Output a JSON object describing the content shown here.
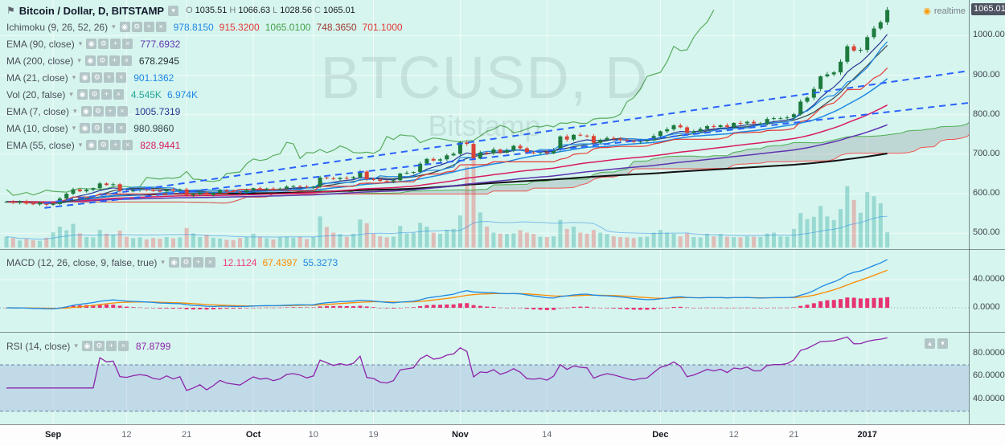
{
  "header": {
    "flag_icon_glyph": "⚑",
    "symbol_title": "Bitcoin / Dollar, D, BITSTAMP",
    "menu_button_glyph": "▾",
    "ohlc": {
      "o_label": "O",
      "o_value": "1035.51",
      "h_label": "H",
      "h_value": "1066.63",
      "l_label": "L",
      "l_value": "1028.56",
      "c_label": "C",
      "c_value": "1065.01"
    },
    "realtime": {
      "label": "realtime",
      "icon_glyph": "◉",
      "icon_color": "#ff9800"
    }
  },
  "icons": {
    "caret": "▾"
  },
  "pane_controls": {
    "up_glyph": "▴",
    "down_glyph": "▾"
  },
  "legend": {
    "buttons": [
      {
        "name": "toggle-visibility-icon",
        "glyph": "◉"
      },
      {
        "name": "settings-icon",
        "glyph": "⚙"
      },
      {
        "name": "more-icon",
        "glyph": "+"
      },
      {
        "name": "remove-icon",
        "glyph": "×"
      }
    ],
    "rows": [
      {
        "name": "Ichimoku (9, 26, 52, 26)",
        "values": [
          {
            "text": "978.8150",
            "color": "#1e88e5"
          },
          {
            "text": "915.3200",
            "color": "#e53935"
          },
          {
            "text": "1065.0100",
            "color": "#43a047"
          },
          {
            "text": "748.3650",
            "color": "#a0392f"
          },
          {
            "text": "701.1000",
            "color": "#e53935"
          }
        ]
      },
      {
        "name": "EMA (90, close)",
        "values": [
          {
            "text": "777.6932",
            "color": "#5e35b1"
          }
        ]
      },
      {
        "name": "MA (200, close)",
        "values": [
          {
            "text": "678.2945",
            "color": "#263238"
          }
        ]
      },
      {
        "name": "MA (21, close)",
        "values": [
          {
            "text": "901.1362",
            "color": "#1e88e5"
          }
        ]
      },
      {
        "name": "Vol (20, false)",
        "values": [
          {
            "text": "4.545K",
            "color": "#26a69a"
          },
          {
            "text": "6.974K",
            "color": "#1e88e5"
          }
        ]
      },
      {
        "name": "EMA (7, close)",
        "values": [
          {
            "text": "1005.7319",
            "color": "#283593"
          }
        ]
      },
      {
        "name": "MA (10, close)",
        "values": [
          {
            "text": "980.9860",
            "color": "#37474f"
          }
        ]
      },
      {
        "name": "EMA (55, close)",
        "values": [
          {
            "text": "828.9441",
            "color": "#d81b60"
          }
        ]
      }
    ]
  },
  "macd_legend": {
    "name": "MACD (12, 26, close, 9, false, true)",
    "values": [
      {
        "text": "12.1124",
        "color": "#ec407a"
      },
      {
        "text": "67.4397",
        "color": "#fb8c00"
      },
      {
        "text": "55.3273",
        "color": "#1e88e5"
      }
    ]
  },
  "rsi_legend": {
    "name": "RSI (14, close)",
    "values": [
      {
        "text": "87.8799",
        "color": "#8e24aa"
      }
    ]
  },
  "watermark": {
    "line1": "BTCUSD, D",
    "line2": "Bitstamp"
  },
  "axes": {
    "price_badge": "1065.01",
    "price_ticks": [
      {
        "label": "1000.00",
        "value": 1000
      },
      {
        "label": "900.00",
        "value": 900
      },
      {
        "label": "800.00",
        "value": 800
      },
      {
        "label": "700.00",
        "value": 700
      },
      {
        "label": "600.00",
        "value": 600
      },
      {
        "label": "500.00",
        "value": 500
      }
    ],
    "macd_ticks": [
      {
        "label": "40.0000",
        "value": 40
      },
      {
        "label": "0.0000",
        "value": 0
      }
    ],
    "rsi_ticks": [
      {
        "label": "80.0000",
        "value": 80
      },
      {
        "label": "60.0000",
        "value": 60
      },
      {
        "label": "40.0000",
        "value": 40
      }
    ],
    "time_ticks": [
      {
        "label": "Sep",
        "index": 7,
        "major": true
      },
      {
        "label": "12",
        "index": 18,
        "major": false
      },
      {
        "label": "21",
        "index": 27,
        "major": false
      },
      {
        "label": "Oct",
        "index": 37,
        "major": true
      },
      {
        "label": "10",
        "index": 46,
        "major": false
      },
      {
        "label": "19",
        "index": 55,
        "major": false
      },
      {
        "label": "Nov",
        "index": 68,
        "major": true
      },
      {
        "label": "14",
        "index": 81,
        "major": false
      },
      {
        "label": "Dec",
        "index": 98,
        "major": true
      },
      {
        "label": "12",
        "index": 109,
        "major": false
      },
      {
        "label": "21",
        "index": 118,
        "major": false
      },
      {
        "label": "2017",
        "index": 129,
        "major": true
      }
    ]
  },
  "chart_data": {
    "type": "candlestick",
    "symbol": "BTCUSD",
    "exchange": "BITSTAMP",
    "interval": "D",
    "date_range": "late Aug 2016 - early Jan 2017",
    "ylim": [
      470,
      1080
    ],
    "last_candle": {
      "open": 1035.51,
      "high": 1066.63,
      "low": 1028.56,
      "close": 1065.01
    },
    "first_open": 578,
    "closes": [
      580,
      577,
      581,
      575,
      573,
      577,
      572,
      574,
      588,
      600,
      611,
      606,
      610,
      614,
      626,
      622,
      624,
      607,
      606,
      609,
      611,
      610,
      607,
      606,
      611,
      608,
      611,
      596,
      599,
      603,
      597,
      602,
      609,
      606,
      605,
      604,
      609,
      614,
      612,
      613,
      611,
      613,
      618,
      619,
      618,
      616,
      618,
      641,
      639,
      637,
      640,
      639,
      642,
      656,
      637,
      636,
      632,
      631,
      634,
      651,
      653,
      655,
      676,
      688,
      684,
      687,
      697,
      701,
      730,
      726,
      689,
      704,
      703,
      712,
      704,
      710,
      721,
      715,
      704,
      703,
      705,
      702,
      711,
      745,
      737,
      749,
      747,
      746,
      729,
      736,
      741,
      739,
      736,
      733,
      731,
      734,
      735,
      746,
      758,
      763,
      773,
      768,
      754,
      758,
      764,
      771,
      769,
      773,
      769,
      779,
      778,
      782,
      778,
      778,
      789,
      791,
      791,
      793,
      801,
      833,
      843,
      865,
      897,
      902,
      907,
      934,
      973,
      962,
      964,
      996,
      1018,
      1034,
      1065
    ],
    "volumes_k": [
      3.2,
      2.8,
      2.1,
      2.6,
      2.2,
      2.0,
      2.9,
      4.5,
      6.2,
      5.1,
      7.0,
      4.2,
      3.1,
      3.0,
      5.2,
      4.1,
      3.8,
      5.0,
      3.2,
      2.8,
      3.0,
      2.4,
      2.8,
      2.6,
      3.1,
      2.7,
      3.0,
      5.8,
      4.2,
      3.1,
      3.8,
      2.9,
      2.7,
      2.3,
      2.2,
      2.8,
      3.1,
      4.1,
      3.2,
      2.8,
      2.4,
      3.0,
      3.1,
      2.9,
      3.2,
      2.5,
      3.1,
      9.2,
      6.1,
      4.4,
      4.0,
      3.2,
      4.1,
      8.3,
      7.2,
      4.1,
      3.3,
      3.0,
      3.2,
      6.4,
      4.2,
      4.4,
      7.3,
      6.2,
      4.4,
      4.1,
      5.2,
      5.5,
      9.5,
      24.0,
      28.0,
      10.4,
      6.2,
      4.4,
      4.1,
      4.0,
      4.2,
      5.1,
      4.4,
      4.0,
      3.2,
      3.1,
      3.3,
      8.2,
      5.5,
      6.2,
      4.4,
      4.1,
      5.2,
      4.4,
      4.0,
      3.3,
      3.1,
      3.0,
      2.8,
      3.1,
      3.2,
      4.4,
      5.2,
      4.4,
      4.1,
      3.3,
      4.2,
      3.1,
      3.0,
      4.1,
      3.3,
      4.0,
      3.2,
      3.1,
      3.0,
      3.3,
      3.2,
      3.1,
      4.2,
      4.4,
      3.3,
      3.2,
      5.5,
      10.2,
      8.4,
      9.1,
      12.3,
      9.2,
      8.1,
      11.4,
      18.2,
      14.1,
      10.3,
      16.4,
      15.2,
      13.1,
      4.5
    ],
    "overlays": {
      "ichimoku": [
        9,
        26,
        52,
        26
      ],
      "ema": [
        7,
        55,
        90
      ],
      "sma": [
        10,
        21,
        200
      ],
      "vol_ma": 20
    },
    "panes": [
      {
        "name": "MACD",
        "params": [
          12,
          26,
          9
        ]
      },
      {
        "name": "RSI",
        "params": [
          14
        ]
      }
    ],
    "trendlines": [
      {
        "i1": 5.7,
        "p1": 576,
        "i2": 144.2,
        "p2": 911,
        "style": "dashed"
      },
      {
        "i1": 5.7,
        "p1": 564,
        "i2": 144.2,
        "p2": 830,
        "style": "dashed"
      }
    ],
    "style": {
      "background": "#d6f5ee",
      "up_candle": "#1d7a3e",
      "down_candle": "#d94436",
      "up_volume": "rgba(38,166,154,0.35)",
      "down_volume": "rgba(239,83,80,0.35)",
      "cloud_fill": "rgba(110,110,125,0.22)",
      "senkou_a": "#4caf50",
      "senkou_b": "#ef5350",
      "tenkan": "#1e88e5",
      "kijun": "#e53935",
      "chikou": "#43a047",
      "ema7": "#283593",
      "sma10": "#37474f",
      "sma21": "#1e88e5",
      "ema55": "#d81b60",
      "ema90": "#5e35b1",
      "sma200": "#111111",
      "trendline": "#2962ff",
      "macd_line": "#1e88e5",
      "macd_signal": "#fb8c00",
      "macd_hist": "rgba(233,30,99,0.9)",
      "rsi_line": "#8e24aa",
      "rsi_band": "rgba(126,140,216,0.25)"
    }
  }
}
